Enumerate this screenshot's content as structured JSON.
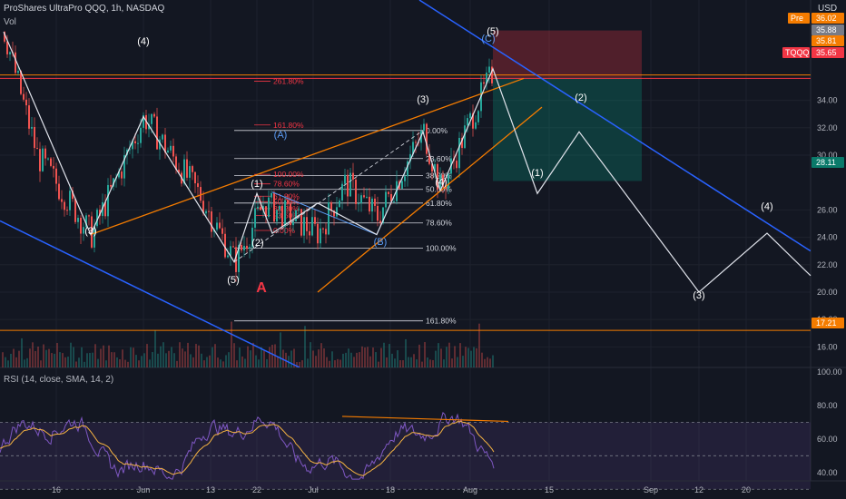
{
  "header": {
    "title": "ProShares UltraPro QQQ, 1h, NASDAQ",
    "volume_label": "Vol",
    "rsi_label": "RSI (14, close, SMA, 14, 2)",
    "currency": "USD"
  },
  "chart_data": {
    "type": "line",
    "symbol": "TQQQ",
    "price_axis": {
      "ticks": [
        34.0,
        32.0,
        30.0,
        26.0,
        24.0,
        22.0,
        20.0,
        18.0,
        16.0
      ],
      "ylim": [
        14.5,
        40.0
      ]
    },
    "price_tags": [
      {
        "label": "Pre",
        "value": "36.02",
        "color": "#f57c00"
      },
      {
        "label": "",
        "value": "35.88",
        "color": "#787b86"
      },
      {
        "label": "",
        "value": "35.81",
        "color": "#f57c00"
      },
      {
        "label": "TQQQ",
        "value": "35.65",
        "color": "#f23645"
      },
      {
        "label": "",
        "value": "28.11",
        "color": "#0a7a6a"
      },
      {
        "label": "",
        "value": "17.21",
        "color": "#f57c00"
      }
    ],
    "x_axis": {
      "ticks": [
        "16",
        "Jun",
        "13",
        "22",
        "Jul",
        "18",
        "Aug",
        "15",
        "Sep",
        "12",
        "20"
      ]
    },
    "rsi_axis": {
      "ticks": [
        100.0,
        80.0,
        60.0,
        40.0
      ],
      "ylim": [
        35,
        100
      ],
      "band": [
        30,
        70
      ]
    },
    "fib_levels": [
      {
        "label": "0.00%",
        "value": 31.8
      },
      {
        "label": "23.60%",
        "value": 29.75
      },
      {
        "label": "38.20%",
        "value": 28.5
      },
      {
        "label": "50.00%",
        "value": 27.5
      },
      {
        "label": "61.80%",
        "value": 26.5
      },
      {
        "label": "78.60%",
        "value": 25.05
      },
      {
        "label": "100.00%",
        "value": 23.2
      },
      {
        "label": "161.80%",
        "value": 17.9
      }
    ],
    "fib_levels_red": [
      {
        "label": "261.80%",
        "value": 35.4
      },
      {
        "label": "161.80%",
        "value": 32.2
      },
      {
        "label": "100.00%",
        "value": 28.6
      },
      {
        "label": "78.60%",
        "value": 27.9
      },
      {
        "label": "61.80%",
        "value": 27.0
      },
      {
        "label": "50.00%",
        "value": 26.6
      },
      {
        "label": "38.20%",
        "value": 26.1
      },
      {
        "label": "23.60%",
        "value": 25.6
      },
      {
        "label": "0.00%",
        "value": 24.5
      }
    ],
    "wave_labels": [
      {
        "text": "(4)",
        "color": "#ffffff"
      },
      {
        "text": "(3)",
        "color": "#ffffff"
      },
      {
        "text": "(5)",
        "color": "#ffffff"
      },
      {
        "text": "A",
        "color": "#f23645"
      },
      {
        "text": "(1)",
        "color": "#ffffff"
      },
      {
        "text": "(2)",
        "color": "#ffffff"
      },
      {
        "text": "(A)",
        "color": "#5b9cf6"
      },
      {
        "text": "(B)",
        "color": "#5b9cf6"
      },
      {
        "text": "(3)",
        "color": "#ffffff"
      },
      {
        "text": "(4)",
        "color": "#ffffff"
      },
      {
        "text": "(C)",
        "color": "#5b9cf6"
      },
      {
        "text": "(5)",
        "color": "#ffffff"
      },
      {
        "text": "(1)",
        "color": "#ffffff"
      },
      {
        "text": "(2)",
        "color": "#ffffff"
      },
      {
        "text": "(3)",
        "color": "#ffffff"
      },
      {
        "text": "(4)",
        "color": "#ffffff"
      }
    ],
    "grid": true
  }
}
